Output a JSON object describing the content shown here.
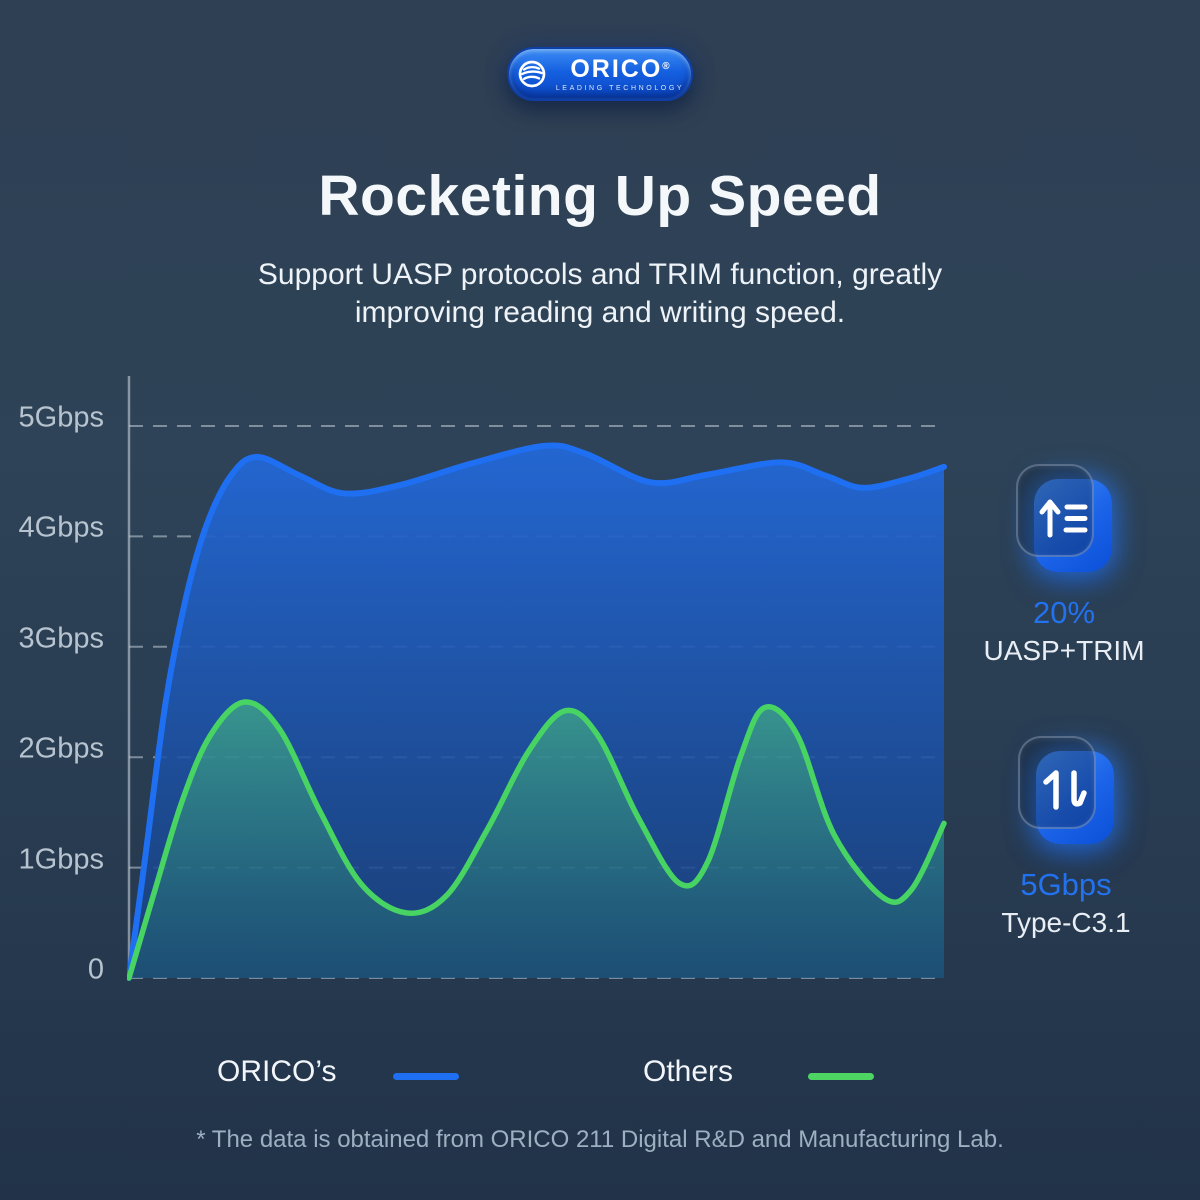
{
  "brand": {
    "name": "ORICO",
    "registered": "®",
    "tagline": "LEADING TECHNOLOGY"
  },
  "header": {
    "title": "Rocketing Up Speed",
    "subtitle_line1": "Support UASP protocols and TRIM function, greatly",
    "subtitle_line2": "improving reading and writing speed."
  },
  "chart_data": {
    "type": "area",
    "title": "",
    "xlabel": "",
    "ylabel": "Gbps",
    "grid": "dashed horizontal gridlines, solid left axis",
    "legend_position": "bottom",
    "y_axis": {
      "min": 0,
      "max": 5,
      "tick_values": [
        5,
        4,
        3,
        2,
        1,
        0
      ],
      "tick_labels": [
        "5Gbps",
        "4Gbps",
        "3Gbps",
        "2Gbps",
        "1Gbps",
        "0"
      ]
    },
    "x_axis": {
      "visible_labels": false,
      "note": "unlabeled axis, x given as fraction 0-1 of plot width"
    },
    "series": [
      {
        "name": "ORICO's",
        "color": "#1f6ff2",
        "stroke_width": 6,
        "fill_top": "#2368d8",
        "fill_top_opacity": 0.95,
        "fill_bottom": "#17407f",
        "fill_bottom_opacity": 0.82,
        "points": [
          [
            0.0,
            0.0
          ],
          [
            0.02,
            1.1
          ],
          [
            0.045,
            2.5
          ],
          [
            0.07,
            3.45
          ],
          [
            0.095,
            4.1
          ],
          [
            0.125,
            4.55
          ],
          [
            0.157,
            4.72
          ],
          [
            0.21,
            4.55
          ],
          [
            0.263,
            4.39
          ],
          [
            0.33,
            4.46
          ],
          [
            0.42,
            4.66
          ],
          [
            0.51,
            4.82
          ],
          [
            0.56,
            4.75
          ],
          [
            0.64,
            4.49
          ],
          [
            0.71,
            4.56
          ],
          [
            0.8,
            4.67
          ],
          [
            0.855,
            4.55
          ],
          [
            0.9,
            4.44
          ],
          [
            0.955,
            4.52
          ],
          [
            1.0,
            4.63
          ]
        ]
      },
      {
        "name": "Others",
        "color": "#47d463",
        "stroke_width": 5.5,
        "fill_top": "#52d877",
        "fill_top_opacity": 0.5,
        "fill_bottom": "#2f9e68",
        "fill_bottom_opacity": 0.16,
        "points": [
          [
            0.0,
            0.0
          ],
          [
            0.03,
            0.75
          ],
          [
            0.065,
            1.6
          ],
          [
            0.1,
            2.2
          ],
          [
            0.142,
            2.5
          ],
          [
            0.185,
            2.25
          ],
          [
            0.235,
            1.5
          ],
          [
            0.285,
            0.85
          ],
          [
            0.34,
            0.59
          ],
          [
            0.39,
            0.75
          ],
          [
            0.44,
            1.35
          ],
          [
            0.49,
            2.05
          ],
          [
            0.535,
            2.42
          ],
          [
            0.575,
            2.2
          ],
          [
            0.625,
            1.45
          ],
          [
            0.675,
            0.86
          ],
          [
            0.71,
            1.05
          ],
          [
            0.75,
            2.0
          ],
          [
            0.78,
            2.45
          ],
          [
            0.82,
            2.2
          ],
          [
            0.865,
            1.3
          ],
          [
            0.925,
            0.73
          ],
          [
            0.96,
            0.8
          ],
          [
            1.0,
            1.4
          ]
        ]
      }
    ],
    "legend": [
      {
        "label": "ORICO’s",
        "color": "#1f6ff2"
      },
      {
        "label": "Others",
        "color": "#4ed463"
      }
    ]
  },
  "highlights": [
    {
      "icon": "sort-up-icon",
      "value": "20%",
      "label": "UASP+TRIM",
      "value_color": "#2373f0"
    },
    {
      "icon": "transfer-icon",
      "value": "5Gbps",
      "label": "Type-C3.1",
      "value_color": "#2373f0"
    }
  ],
  "footer": {
    "note": "* The data is obtained from ORICO 211 Digital R&D and Manufacturing Lab."
  },
  "colors": {
    "background_top": "#2f3f54",
    "background_bottom": "#223349",
    "gridline": "#c3cdd8",
    "axis_label": "#b7c3ce",
    "title_text": "#f5f8fb",
    "accent_blue": "#1f6ff2",
    "accent_green": "#47d463"
  }
}
